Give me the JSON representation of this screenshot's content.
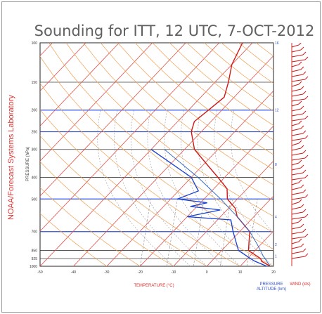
{
  "chart_data": {
    "type": "skew-t",
    "title": "Sounding for ITT, 12 UTC,  7-OCT-2012",
    "side_label": "NOAA/Forecast Systems Laboratory",
    "ylabel": "PRESSURE (hPa)",
    "xlabel": "TEMPERATURE (°C)",
    "altitude_label_line1": "PRESSURE",
    "altitude_label_line2": "ALTITUDE (km)",
    "wind_label": "WIND (kts)",
    "pressure_levels": [
      100,
      150,
      200,
      250,
      300,
      400,
      500,
      700,
      850,
      925,
      1000
    ],
    "temperature_ticks": [
      -50,
      -40,
      -30,
      -20,
      -10,
      0,
      10,
      20
    ],
    "altitude_ticks": [
      "16",
      "12",
      "8",
      "4",
      "2",
      "1"
    ],
    "xlim": [
      -50,
      20
    ],
    "ylim": [
      1000,
      100
    ],
    "temperature_profile": [
      {
        "p": 1000,
        "t": 19
      },
      {
        "p": 950,
        "t": 15
      },
      {
        "p": 925,
        "t": 14
      },
      {
        "p": 850,
        "t": 8
      },
      {
        "p": 700,
        "t": 3
      },
      {
        "p": 600,
        "t": -5
      },
      {
        "p": 550,
        "t": -8
      },
      {
        "p": 500,
        "t": -13
      },
      {
        "p": 450,
        "t": -16
      },
      {
        "p": 400,
        "t": -22
      },
      {
        "p": 350,
        "t": -29
      },
      {
        "p": 300,
        "t": -37
      },
      {
        "p": 250,
        "t": -43
      },
      {
        "p": 225,
        "t": -45
      },
      {
        "p": 200,
        "t": -44
      },
      {
        "p": 175,
        "t": -43
      },
      {
        "p": 150,
        "t": -46
      },
      {
        "p": 125,
        "t": -50
      },
      {
        "p": 100,
        "t": -53
      }
    ],
    "dewpoint_profile": [
      {
        "p": 1000,
        "t": 18
      },
      {
        "p": 950,
        "t": 13
      },
      {
        "p": 925,
        "t": 11
      },
      {
        "p": 850,
        "t": 5
      },
      {
        "p": 700,
        "t": -2
      },
      {
        "p": 620,
        "t": -6
      },
      {
        "p": 600,
        "t": -20
      },
      {
        "p": 560,
        "t": -12
      },
      {
        "p": 540,
        "t": -22
      },
      {
        "p": 520,
        "t": -18
      },
      {
        "p": 500,
        "t": -28
      },
      {
        "p": 460,
        "t": -24
      },
      {
        "p": 400,
        "t": -30
      },
      {
        "p": 300,
        "t": -50
      }
    ],
    "parcel_path": [
      {
        "p": 1000,
        "t": 19
      },
      {
        "p": 900,
        "t": 14
      },
      {
        "p": 800,
        "t": 9
      },
      {
        "p": 700,
        "t": 3
      },
      {
        "p": 600,
        "t": -5
      },
      {
        "p": 500,
        "t": -15
      },
      {
        "p": 400,
        "t": -28
      },
      {
        "p": 300,
        "t": -46
      }
    ],
    "colors": {
      "isotherm": "#e0504a",
      "dry_adiabat": "#f0a050",
      "moist_adiabat": "#a8a8a8",
      "mixing_ratio": "#8a8a8a",
      "isobar": "#404040",
      "temperature": "#d01818",
      "dewpoint": "#1840d0",
      "axis_accent": "#3050d0",
      "text_red": "#e03030",
      "title_color": "#606060"
    }
  }
}
